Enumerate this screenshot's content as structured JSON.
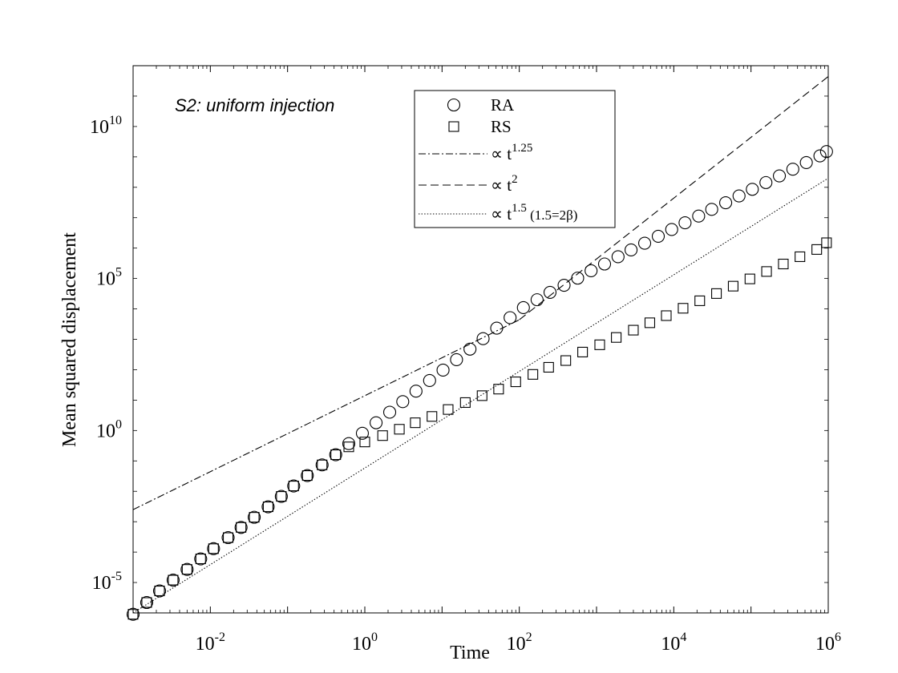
{
  "chart_data": {
    "type": "scatter",
    "title": "",
    "annotation": "S2: uniform injection",
    "xlabel": "Time",
    "ylabel": "Mean squared displacement",
    "xscale": "log",
    "yscale": "log",
    "xlim": [
      0.001,
      1000000
    ],
    "ylim": [
      1e-06,
      1000000000000.0
    ],
    "grid": false,
    "legend_position": "top-center",
    "x_ticks": [
      {
        "value": 0.01,
        "base": "10",
        "exp": "-2"
      },
      {
        "value": 1,
        "base": "10",
        "exp": "0"
      },
      {
        "value": 100,
        "base": "10",
        "exp": "2"
      },
      {
        "value": 10000,
        "base": "10",
        "exp": "4"
      },
      {
        "value": 1000000,
        "base": "10",
        "exp": "6"
      }
    ],
    "y_ticks": [
      {
        "value": 1e-05,
        "base": "10",
        "exp": "-5"
      },
      {
        "value": 1,
        "base": "10",
        "exp": "0"
      },
      {
        "value": 100000,
        "base": "10",
        "exp": "5"
      },
      {
        "value": 10000000000.0,
        "base": "10",
        "exp": "10"
      }
    ],
    "series": [
      {
        "name": "RA",
        "marker": "circle",
        "color": "#000000",
        "points": [
          [
            0.001,
            9e-07
          ],
          [
            0.0015,
            2.2e-06
          ],
          [
            0.0022,
            5.3e-06
          ],
          [
            0.0033,
            1.2e-05
          ],
          [
            0.005,
            2.7e-05
          ],
          [
            0.0075,
            6e-05
          ],
          [
            0.011,
            0.00013
          ],
          [
            0.017,
            0.0003
          ],
          [
            0.025,
            0.00065
          ],
          [
            0.037,
            0.0014
          ],
          [
            0.056,
            0.0031
          ],
          [
            0.083,
            0.0068
          ],
          [
            0.12,
            0.015
          ],
          [
            0.18,
            0.033
          ],
          [
            0.28,
            0.074
          ],
          [
            0.42,
            0.16
          ],
          [
            0.62,
            0.37
          ],
          [
            0.93,
            0.81
          ],
          [
            1.4,
            1.8
          ],
          [
            2.1,
            4.0
          ],
          [
            3.1,
            8.9
          ],
          [
            4.6,
            19.7
          ],
          [
            6.9,
            44
          ],
          [
            10.3,
            97
          ],
          [
            15.4,
            214
          ],
          [
            23,
            475
          ],
          [
            34,
            1050
          ],
          [
            51,
            2330
          ],
          [
            76,
            5150
          ],
          [
            113,
            11000
          ],
          [
            170,
            20000
          ],
          [
            250,
            35000
          ],
          [
            380,
            60000
          ],
          [
            570,
            103000
          ],
          [
            850,
            180000
          ],
          [
            1270,
            300000
          ],
          [
            1900,
            520000
          ],
          [
            2800,
            870000
          ],
          [
            4200,
            1450000.0
          ],
          [
            6300,
            2450000.0
          ],
          [
            9400,
            4100000.0
          ],
          [
            14000,
            6800000.0
          ],
          [
            21000,
            11300000.0
          ],
          [
            31000,
            18800000.0
          ],
          [
            47000,
            31000000.0
          ],
          [
            70000,
            52000000.0
          ],
          [
            104000,
            86000000.0
          ],
          [
            156000,
            143000000.0
          ],
          [
            233000,
            237000000.0
          ],
          [
            348000,
            394000000.0
          ],
          [
            520000,
            650000000.0
          ],
          [
            780000,
            1080000000.0
          ],
          [
            950000,
            1500000000.0
          ]
        ]
      },
      {
        "name": "RS",
        "marker": "square",
        "color": "#000000",
        "points": [
          [
            0.001,
            9e-07
          ],
          [
            0.0015,
            2.2e-06
          ],
          [
            0.0022,
            5.3e-06
          ],
          [
            0.0033,
            1.2e-05
          ],
          [
            0.005,
            2.7e-05
          ],
          [
            0.0075,
            6e-05
          ],
          [
            0.011,
            0.00013
          ],
          [
            0.017,
            0.0003
          ],
          [
            0.025,
            0.00065
          ],
          [
            0.037,
            0.0014
          ],
          [
            0.056,
            0.0031
          ],
          [
            0.083,
            0.0068
          ],
          [
            0.12,
            0.015
          ],
          [
            0.18,
            0.033
          ],
          [
            0.28,
            0.074
          ],
          [
            0.42,
            0.16
          ],
          [
            0.62,
            0.29
          ],
          [
            1.0,
            0.42
          ],
          [
            1.7,
            0.68
          ],
          [
            2.8,
            1.1
          ],
          [
            4.5,
            1.8
          ],
          [
            7.4,
            2.9
          ],
          [
            12,
            4.9
          ],
          [
            20,
            8.3
          ],
          [
            33,
            14
          ],
          [
            54,
            23
          ],
          [
            90,
            40
          ],
          [
            150,
            70
          ],
          [
            240,
            120
          ],
          [
            400,
            200
          ],
          [
            660,
            380
          ],
          [
            1100,
            660
          ],
          [
            1800,
            1150
          ],
          [
            3000,
            2000
          ],
          [
            4900,
            3500
          ],
          [
            8000,
            6000
          ],
          [
            13200,
            10500
          ],
          [
            21700,
            18500
          ],
          [
            35700,
            32000
          ],
          [
            58800,
            56000
          ],
          [
            96800,
            97000
          ],
          [
            159000,
            170000
          ],
          [
            262000,
            300000
          ],
          [
            430000,
            520000
          ],
          [
            710000,
            900000
          ],
          [
            950000,
            1500000.0
          ]
        ]
      },
      {
        "name": "∝ t^1.25",
        "line": "dash-dot",
        "color": "#000000",
        "points": [
          [
            0.001,
            0.0025
          ],
          [
            100,
            4400.0
          ]
        ]
      },
      {
        "name": "∝ t^2",
        "line": "dashed",
        "color": "#000000",
        "points": [
          [
            100,
            4400.0
          ],
          [
            1000000,
            440000000000.0
          ]
        ]
      },
      {
        "name": "∝ t^1.5 (1.5=2β)",
        "line": "dotted",
        "color": "#000000",
        "points": [
          [
            0.001,
            6.3e-07
          ],
          [
            1000000,
            200000000.0
          ]
        ]
      }
    ],
    "legend": [
      {
        "symbol": "circle",
        "text": "RA"
      },
      {
        "symbol": "square",
        "text": "RS"
      },
      {
        "symbol": "dash-dot",
        "text": "∝ t",
        "sup": "1.25",
        "tail": ""
      },
      {
        "symbol": "dashed",
        "text": "∝ t",
        "sup": "2",
        "tail": ""
      },
      {
        "symbol": "dotted",
        "text": "∝ t",
        "sup": "1.5",
        "tail": " (1.5=2β)"
      }
    ]
  }
}
